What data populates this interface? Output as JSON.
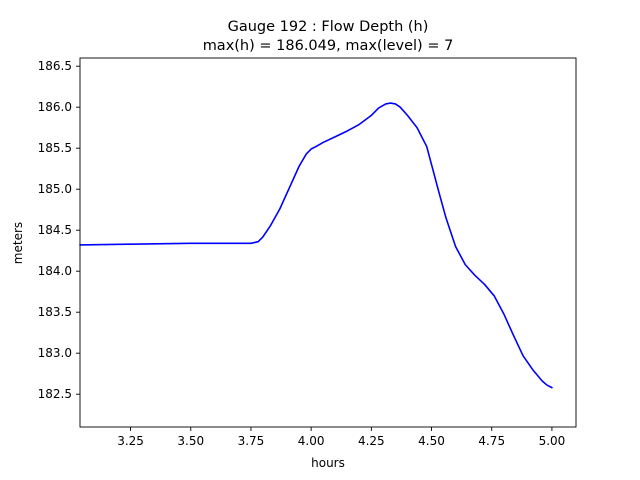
{
  "chart_data": {
    "type": "line",
    "title": "Gauge 192 : Flow Depth (h)",
    "subtitle": "max(h) = 186.049,    max(level) = 7",
    "xlabel": "hours",
    "ylabel": "meters",
    "xlim": [
      3.04,
      5.1
    ],
    "ylim": [
      182.1,
      186.6
    ],
    "xticks": [
      3.25,
      3.5,
      3.75,
      4.0,
      4.25,
      4.5,
      4.75,
      5.0
    ],
    "xtick_labels": [
      "3.25",
      "3.50",
      "3.75",
      "4.00",
      "4.25",
      "4.50",
      "4.75",
      "5.00"
    ],
    "yticks": [
      182.5,
      183.0,
      183.5,
      184.0,
      184.5,
      185.0,
      185.5,
      186.0,
      186.5
    ],
    "ytick_labels": [
      "182.5",
      "183.0",
      "183.5",
      "184.0",
      "184.5",
      "185.0",
      "185.5",
      "186.0",
      "186.5"
    ],
    "grid": false,
    "series": [
      {
        "color": "#0000ff",
        "x": [
          3.04,
          3.25,
          3.5,
          3.6,
          3.75,
          3.78,
          3.8,
          3.83,
          3.87,
          3.91,
          3.95,
          3.98,
          4.0,
          4.02,
          4.05,
          4.1,
          4.15,
          4.2,
          4.25,
          4.28,
          4.31,
          4.33,
          4.35,
          4.37,
          4.4,
          4.44,
          4.48,
          4.5,
          4.53,
          4.56,
          4.6,
          4.64,
          4.68,
          4.72,
          4.76,
          4.8,
          4.84,
          4.88,
          4.92,
          4.96,
          4.98,
          5.0
        ],
        "y": [
          184.32,
          184.33,
          184.34,
          184.34,
          184.34,
          184.36,
          184.42,
          184.55,
          184.76,
          185.02,
          185.28,
          185.43,
          185.49,
          185.52,
          185.57,
          185.64,
          185.71,
          185.79,
          185.9,
          185.99,
          186.04,
          186.05,
          186.04,
          186.0,
          185.9,
          185.75,
          185.52,
          185.3,
          184.97,
          184.65,
          184.3,
          184.08,
          183.95,
          183.84,
          183.7,
          183.48,
          183.22,
          182.97,
          182.8,
          182.66,
          182.61,
          182.58
        ]
      }
    ]
  }
}
